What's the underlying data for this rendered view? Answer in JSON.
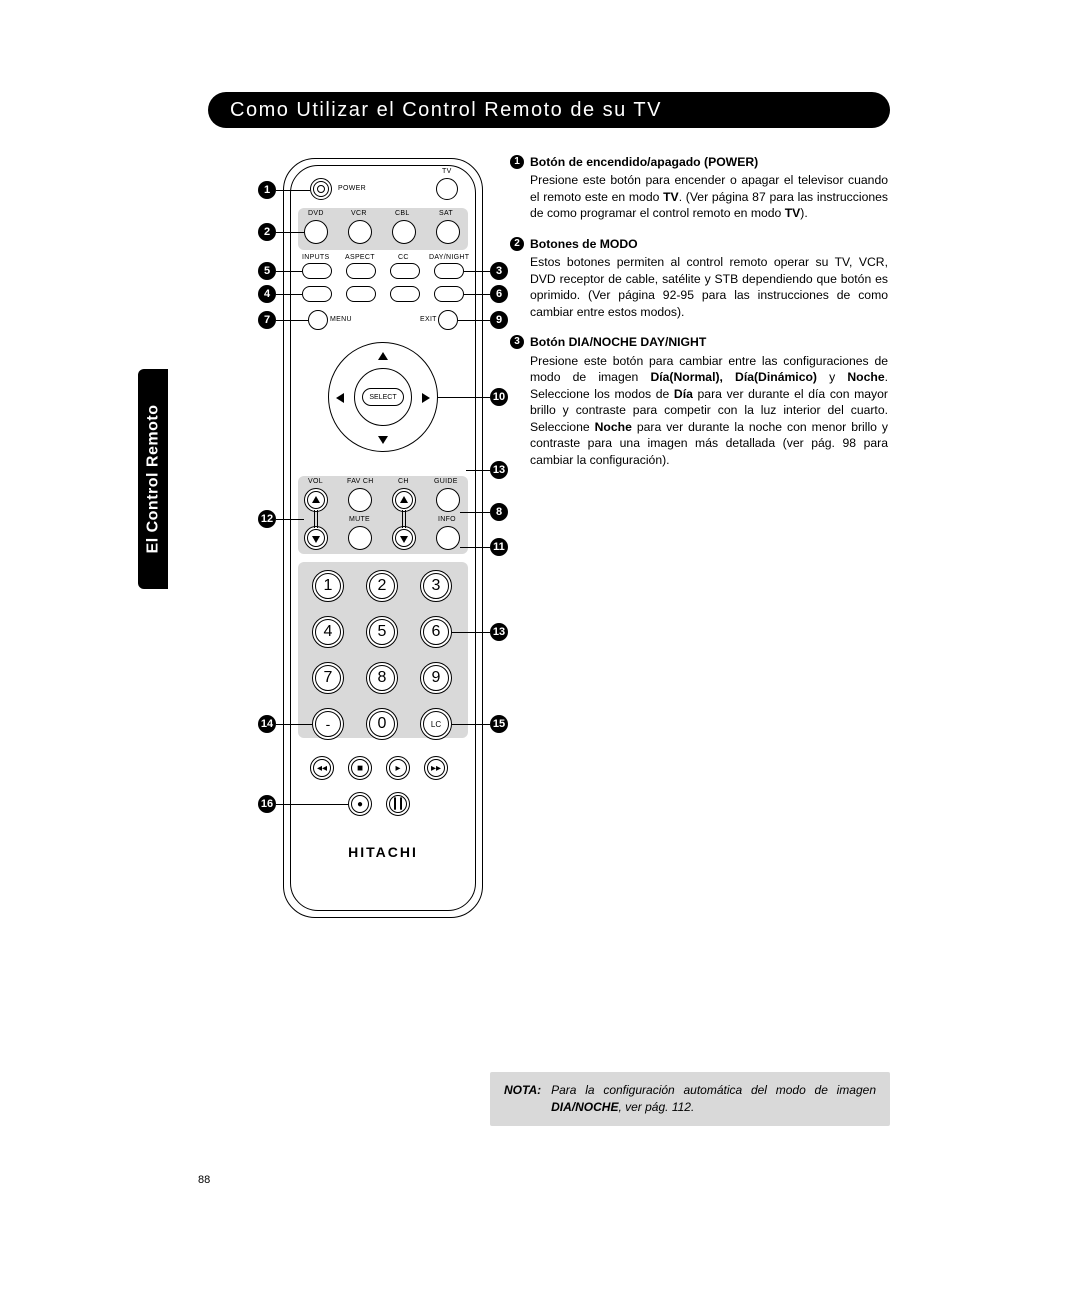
{
  "page_number": "88",
  "title": "Como Utilizar el Control Remoto de su TV",
  "side_tab": "El Control Remoto",
  "brand": "HITACHI",
  "remote_labels": {
    "power": "POWER",
    "tv": "TV",
    "dvd": "DVD",
    "vcr": "VCR",
    "cbl": "CBL",
    "sat": "SAT",
    "inputs": "INPUTS",
    "aspect": "ASPECT",
    "cc": "CC",
    "daynight": "DAY/NIGHT",
    "menu": "MENU",
    "exit": "EXIT",
    "select": "SELECT",
    "vol": "VOL",
    "favch": "FAV CH",
    "ch": "CH",
    "guide": "GUIDE",
    "mute": "MUTE",
    "info": "INFO",
    "lc": "LC",
    "dash": "-"
  },
  "keypad": [
    "1",
    "2",
    "3",
    "4",
    "5",
    "6",
    "7",
    "8",
    "9",
    "0"
  ],
  "callouts_left": [
    "1",
    "2",
    "5",
    "4",
    "7",
    "12",
    "14",
    "16"
  ],
  "callouts_right": [
    "3",
    "6",
    "9",
    "10",
    "13",
    "8",
    "11",
    "13",
    "15"
  ],
  "descriptions": [
    {
      "num": "1",
      "title": "Botón de encendido/apagado (POWER)",
      "body_parts": [
        "Presione este botón para encender o apagar el televisor cuando el remoto este en modo ",
        {
          "b": "TV"
        },
        ".  (Ver página 87 para las instrucciones de como programar el control remoto en modo ",
        {
          "b": "TV"
        },
        ")."
      ]
    },
    {
      "num": "2",
      "title": "Botones de MODO",
      "body_parts": [
        "Estos botones permiten al control remoto operar su TV, VCR, DVD receptor de cable, satélite y STB dependiendo que botón es oprimido. (Ver página 92-95 para las instrucciones de como cambiar entre estos modos)."
      ]
    },
    {
      "num": "3",
      "title": "Botón DIA/NOCHE DAY/NIGHT",
      "body_parts": [
        "Presione este botón para cambiar entre las configuraciones de modo de imagen ",
        {
          "b": "Día(Normal), Día(Dinámico)"
        },
        " y ",
        {
          "b": "Noche"
        },
        ". Seleccione los modos de ",
        {
          "b": "Día"
        },
        " para ver durante el día con mayor brillo y contraste para competir con la luz interior del cuarto. Seleccione ",
        {
          "b": "Noche"
        },
        " para ver durante la noche con menor brillo y contraste para una imagen más detallada (ver pág. 98 para cambiar la configuración)."
      ]
    }
  ],
  "note": {
    "label": "NOTA:",
    "parts": [
      "Para la configuración automática del modo de imagen ",
      {
        "b": "DIA/NOCHE"
      },
      ", ver pág. 112."
    ]
  },
  "colors": {
    "bg": "#ffffff",
    "black": "#000000",
    "gray_panel": "#d9d9d9"
  }
}
